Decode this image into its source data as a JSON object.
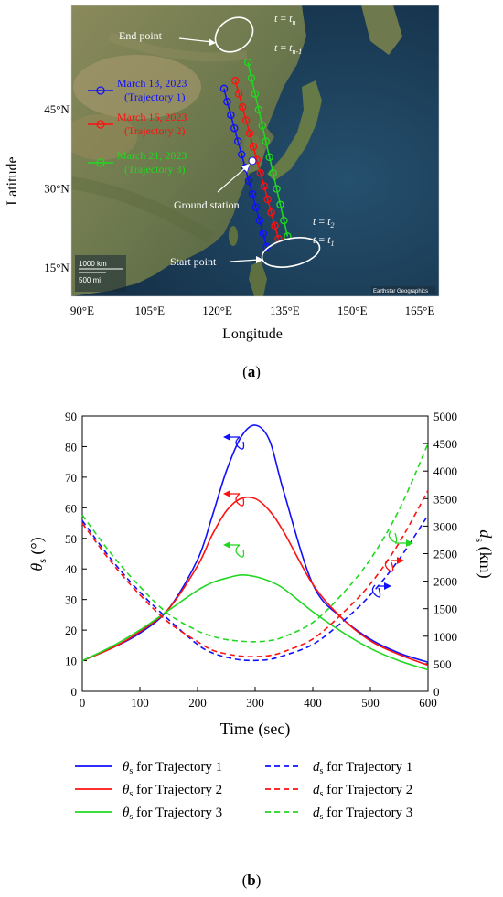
{
  "colors": {
    "traj1": "#1010ff",
    "traj2": "#ff1010",
    "traj3": "#20d820",
    "map_bg": "#3a5a6a",
    "land": "#7f8560",
    "ocean": "#1e3f57"
  },
  "panel_a": {
    "label": "a",
    "xlabel": "Longitude",
    "ylabel": "Latitude",
    "x_ticks": [
      "90°E",
      "105°E",
      "120°E",
      "135°E",
      "150°E",
      "165°E"
    ],
    "y_ticks": [
      "45°N",
      "30°N",
      "15°N"
    ],
    "legend": [
      {
        "date": "March 13, 2023",
        "name": "(Trajectory 1)"
      },
      {
        "date": "March 16, 2023",
        "name": "(Trajectory 2)"
      },
      {
        "date": "March 21, 2023",
        "name": "(Trajectory 3)"
      }
    ],
    "annotations": {
      "end_point": "End point",
      "start_point": "Start point",
      "ground_station": "Ground station",
      "tn_t": "t",
      "tn_eq": " = ",
      "tn_sub": "n",
      "tn1_t": "t",
      "tn1_eq": " = ",
      "tn1_sub": "n-1",
      "t2_t": "t",
      "t2_eq": " = ",
      "t2_sub": "2",
      "t1_t": "t",
      "t1_eq": " = ",
      "t1_sub": "1",
      "scale_km": "1000 km",
      "scale_mi": "500 mi",
      "credit": "Earthstar Geographics"
    },
    "trajectories": [
      {
        "points": [
          [
            121.5,
            49
          ],
          [
            122.2,
            46.5
          ],
          [
            123,
            44
          ],
          [
            123.8,
            41.5
          ],
          [
            124.6,
            39
          ],
          [
            125.4,
            36.5
          ],
          [
            126.2,
            34
          ],
          [
            127,
            31.5
          ],
          [
            127.8,
            29
          ],
          [
            128.6,
            26.5
          ],
          [
            129.4,
            24
          ],
          [
            130.2,
            21.5
          ],
          [
            131,
            19
          ]
        ]
      },
      {
        "points": [
          [
            124,
            50.5
          ],
          [
            124.8,
            48
          ],
          [
            125.6,
            45.5
          ],
          [
            126.4,
            43
          ],
          [
            127.2,
            40.5
          ],
          [
            128,
            38
          ],
          [
            128.8,
            35.5
          ],
          [
            129.6,
            33
          ],
          [
            130.4,
            30.5
          ],
          [
            131.2,
            28
          ],
          [
            132,
            25.5
          ],
          [
            132.8,
            23
          ],
          [
            133.6,
            20.5
          ]
        ]
      },
      {
        "points": [
          [
            126.8,
            54
          ],
          [
            127.6,
            51
          ],
          [
            128.4,
            48
          ],
          [
            129.2,
            45
          ],
          [
            130,
            42
          ],
          [
            130.8,
            39
          ],
          [
            131.6,
            36
          ],
          [
            132.4,
            33
          ],
          [
            133.2,
            30
          ],
          [
            134,
            27
          ],
          [
            134.8,
            24
          ],
          [
            135.6,
            21
          ]
        ]
      }
    ]
  },
  "chart_data": {
    "type": "line",
    "panel_label": "b",
    "xlabel": "Time (sec)",
    "ylabel_left_sym": "θ",
    "ylabel_left_sub": "s",
    "ylabel_left_unit": " (°)",
    "ylabel_right_sym": "d",
    "ylabel_right_sub": "s",
    "ylabel_right_unit": " (km)",
    "xlim": [
      0,
      600
    ],
    "ylim_left": [
      0,
      90
    ],
    "ylim_right": [
      0,
      5000
    ],
    "x_ticks": [
      "0",
      "100",
      "200",
      "300",
      "400",
      "500",
      "600"
    ],
    "y_ticks_left": [
      "0",
      "10",
      "20",
      "30",
      "40",
      "50",
      "60",
      "70",
      "80",
      "90"
    ],
    "y_ticks_right": [
      "0",
      "500",
      "1000",
      "1500",
      "2000",
      "2500",
      "3000",
      "3500",
      "4000",
      "4500",
      "5000"
    ],
    "x": [
      0,
      50,
      100,
      150,
      200,
      225,
      250,
      275,
      300,
      325,
      350,
      400,
      450,
      500,
      550,
      600
    ],
    "series": [
      {
        "name": "θs for Trajectory 1",
        "axis": "left",
        "style": "solid",
        "color": "#1010ff",
        "values": [
          10,
          14,
          19,
          27,
          43,
          57,
          72,
          83,
          87,
          82,
          65,
          35,
          24,
          17,
          12.5,
          9.5
        ]
      },
      {
        "name": "θs for Trajectory 2",
        "axis": "left",
        "style": "solid",
        "color": "#ff1010",
        "values": [
          10,
          14,
          19.5,
          27,
          41,
          51,
          59,
          63,
          63,
          59,
          52,
          35,
          24,
          16.5,
          12,
          8.5
        ]
      },
      {
        "name": "θs for Trajectory 3",
        "axis": "left",
        "style": "solid",
        "color": "#20d820",
        "values": [
          10,
          14.5,
          20,
          26.5,
          33,
          35.5,
          37,
          38,
          37.5,
          36,
          33.5,
          26,
          19.5,
          14,
          10,
          7
        ]
      },
      {
        "name": "ds for Trajectory 1",
        "axis": "right",
        "style": "dashed",
        "color": "#1010ff",
        "values": [
          3100,
          2400,
          1800,
          1300,
          850,
          700,
          620,
          570,
          560,
          580,
          650,
          850,
          1250,
          1750,
          2400,
          3200
        ]
      },
      {
        "name": "ds for Trajectory 2",
        "axis": "right",
        "style": "dashed",
        "color": "#ff1010",
        "values": [
          3050,
          2350,
          1750,
          1250,
          900,
          750,
          680,
          640,
          630,
          650,
          720,
          950,
          1400,
          1950,
          2700,
          3650
        ]
      },
      {
        "name": "ds for Trajectory 3",
        "axis": "right",
        "style": "dashed",
        "color": "#20d820",
        "values": [
          3200,
          2500,
          1900,
          1400,
          1100,
          1000,
          940,
          910,
          900,
          920,
          990,
          1250,
          1750,
          2400,
          3300,
          4500
        ]
      }
    ],
    "legend": [
      {
        "sym": "θ",
        "sub": "s",
        "text": " for Trajectory 1"
      },
      {
        "sym": "d",
        "sub": "s",
        "text": " for Trajectory 1"
      },
      {
        "sym": "θ",
        "sub": "s",
        "text": " for Trajectory 2"
      },
      {
        "sym": "d",
        "sub": "s",
        "text": " for Trajectory 2"
      },
      {
        "sym": "θ",
        "sub": "s",
        "text": " for Trajectory 3"
      },
      {
        "sym": "d",
        "sub": "s",
        "text": " for Trajectory 3"
      }
    ]
  }
}
